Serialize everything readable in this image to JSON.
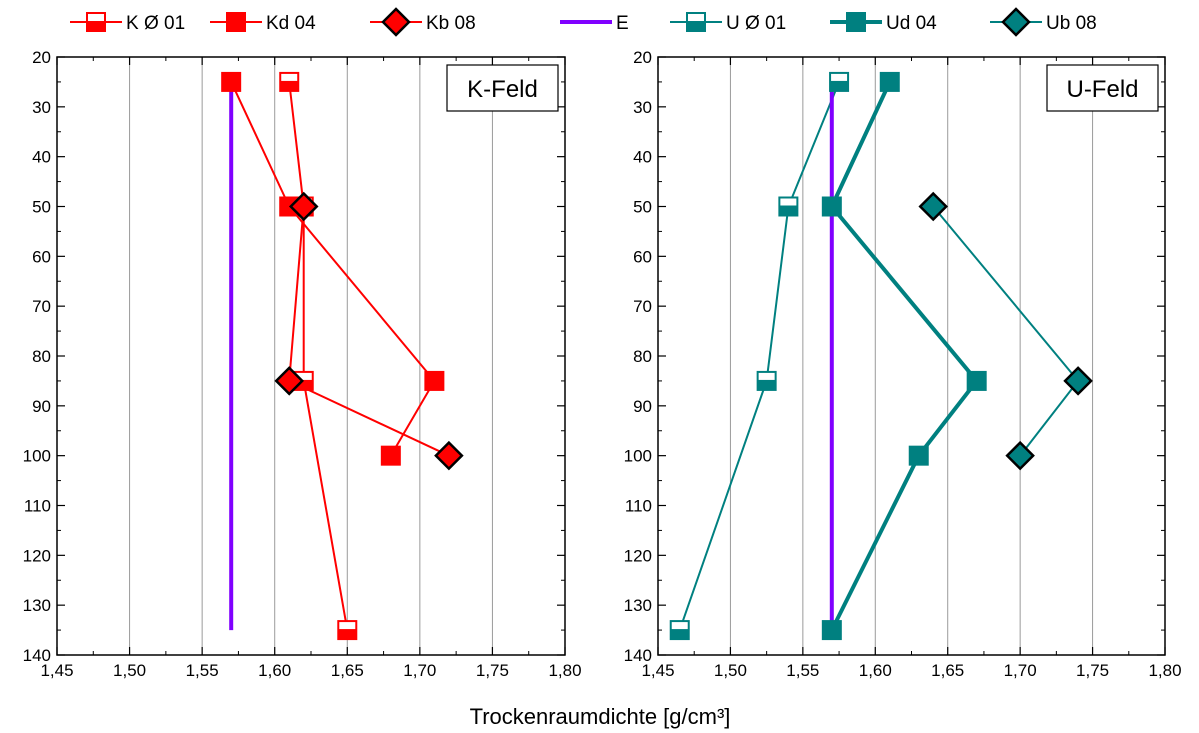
{
  "chart_data": {
    "type": "line",
    "xlabel": "Trockenraumdichte [g/cm³]",
    "legend": {
      "placement": "top",
      "entries": [
        {
          "label": "K Ø 01",
          "color": "#ff0000",
          "marker": "square-half",
          "line_width": 2
        },
        {
          "label": "Kd 04",
          "color": "#ff0000",
          "marker": "square",
          "line_width": 2
        },
        {
          "label": "Kb 08",
          "color": "#ff0000",
          "marker": "diamond",
          "line_width": 2
        },
        {
          "label": "E",
          "color": "#8000ff",
          "marker": "none",
          "line_width": 4
        },
        {
          "label": "U Ø 01",
          "color": "#008080",
          "marker": "square-half",
          "line_width": 2
        },
        {
          "label": "Ud 04",
          "color": "#008080",
          "marker": "square",
          "line_width": 4
        },
        {
          "label": "Ub 08",
          "color": "#008080",
          "marker": "diamond",
          "line_width": 2
        }
      ]
    },
    "panels": [
      {
        "name": "K-Feld",
        "xlim": [
          1.45,
          1.8
        ],
        "ylim": [
          20,
          140
        ],
        "y_inverted": true,
        "grid": "vertical",
        "x_ticks": [
          "1,45",
          "1,50",
          "1,55",
          "1,60",
          "1,65",
          "1,70",
          "1,75",
          "1,80"
        ],
        "y_ticks": [
          "20",
          "30",
          "40",
          "50",
          "60",
          "70",
          "80",
          "90",
          "100",
          "110",
          "120",
          "130",
          "140"
        ],
        "series": [
          {
            "name": "K Ø 01",
            "color": "#ff0000",
            "marker": "square-half",
            "line_width": 2,
            "points": [
              [
                1.61,
                25
              ],
              [
                1.62,
                50
              ],
              [
                1.62,
                85
              ],
              [
                1.65,
                135
              ]
            ]
          },
          {
            "name": "Kd 04",
            "color": "#ff0000",
            "marker": "square",
            "line_width": 2,
            "points": [
              [
                1.57,
                25
              ],
              [
                1.61,
                50
              ],
              [
                1.71,
                85
              ],
              [
                1.68,
                100
              ]
            ]
          },
          {
            "name": "Kb 08",
            "color": "#ff0000",
            "marker": "diamond",
            "line_width": 2,
            "points": [
              [
                1.62,
                50
              ],
              [
                1.61,
                85
              ],
              [
                1.72,
                100
              ]
            ]
          },
          {
            "name": "E",
            "color": "#8000ff",
            "marker": "none",
            "line_width": 4,
            "points": [
              [
                1.57,
                25
              ],
              [
                1.57,
                135
              ]
            ]
          }
        ]
      },
      {
        "name": "U-Feld",
        "xlim": [
          1.45,
          1.8
        ],
        "ylim": [
          20,
          140
        ],
        "y_inverted": true,
        "grid": "vertical",
        "x_ticks": [
          "1,45",
          "1,50",
          "1,55",
          "1,60",
          "1,65",
          "1,70",
          "1,75",
          "1,80"
        ],
        "y_ticks": [
          "20",
          "30",
          "40",
          "50",
          "60",
          "70",
          "80",
          "90",
          "100",
          "110",
          "120",
          "130",
          "140"
        ],
        "series": [
          {
            "name": "U Ø 01",
            "color": "#008080",
            "marker": "square-half",
            "line_width": 2,
            "points": [
              [
                1.575,
                25
              ],
              [
                1.54,
                50
              ],
              [
                1.525,
                85
              ],
              [
                1.465,
                135
              ]
            ]
          },
          {
            "name": "Ud 04",
            "color": "#008080",
            "marker": "square",
            "line_width": 4,
            "points": [
              [
                1.61,
                25
              ],
              [
                1.57,
                50
              ],
              [
                1.67,
                85
              ],
              [
                1.63,
                100
              ],
              [
                1.57,
                135
              ]
            ]
          },
          {
            "name": "Ub 08",
            "color": "#008080",
            "marker": "diamond",
            "line_width": 2,
            "points": [
              [
                1.64,
                50
              ],
              [
                1.74,
                85
              ],
              [
                1.7,
                100
              ]
            ]
          },
          {
            "name": "E",
            "color": "#8000ff",
            "marker": "none",
            "line_width": 4,
            "points": [
              [
                1.57,
                25
              ],
              [
                1.57,
                135
              ]
            ]
          }
        ]
      }
    ]
  }
}
